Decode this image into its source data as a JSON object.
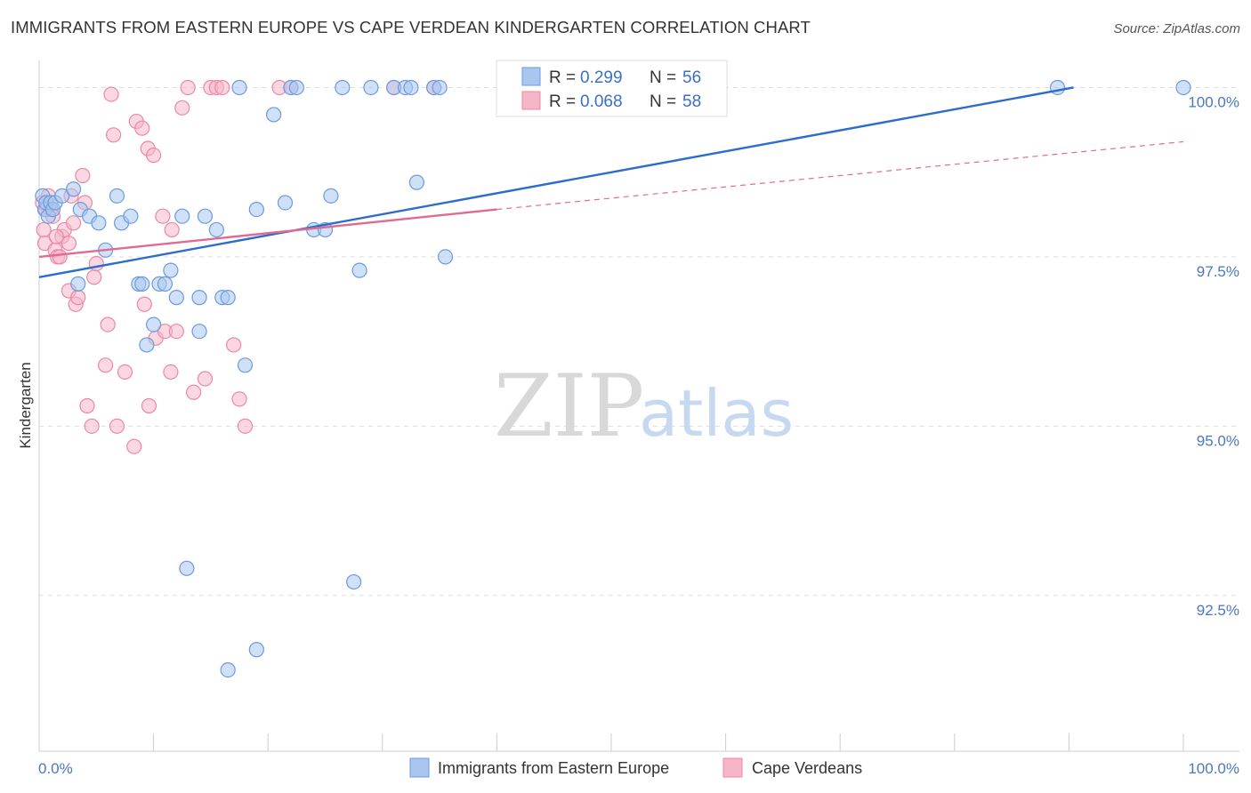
{
  "title": "IMMIGRANTS FROM EASTERN EUROPE VS CAPE VERDEAN KINDERGARTEN CORRELATION CHART",
  "source": "Source: ZipAtlas.com",
  "watermark": {
    "zip": "ZIP",
    "atlas": "atlas"
  },
  "colors": {
    "blue_fill": "#a9c6ee",
    "blue_stroke": "#6a9be0",
    "blue_line": "#2a6dcc",
    "pink_fill": "#f6b6c8",
    "pink_stroke": "#eb88a6",
    "pink_line": "#e06a92",
    "grid": "#dddddd",
    "tick_label": "#4a78c0"
  },
  "legend": {
    "rows": [
      {
        "r_label": "R =",
        "r_value": "0.299",
        "n_label": "N =",
        "n_value": "56"
      },
      {
        "r_label": "R =",
        "r_value": "0.068",
        "n_label": "N =",
        "n_value": "58"
      }
    ]
  },
  "chart_data": {
    "type": "scatter",
    "title": "IMMIGRANTS FROM EASTERN EUROPE VS CAPE VERDEAN KINDERGARTEN CORRELATION CHART",
    "xlabel": "",
    "ylabel": "Kindergarten",
    "xlim": [
      0,
      100
    ],
    "ylim": [
      90.2,
      100.4
    ],
    "x_tick_labels": [
      "0.0%",
      "100.0%"
    ],
    "y_ticks": [
      92.5,
      95.0,
      97.5,
      100.0
    ],
    "y_tick_labels": [
      "92.5%",
      "95.0%",
      "97.5%",
      "100.0%"
    ],
    "series": [
      {
        "name": "Immigrants from Eastern Europe",
        "color": "blue",
        "trend": {
          "x0": 0,
          "y0": 97.2,
          "x1": 90.4,
          "y1": 100.0,
          "dashed_to": null
        },
        "points": [
          [
            0.3,
            98.4
          ],
          [
            0.5,
            98.2
          ],
          [
            0.6,
            98.3
          ],
          [
            0.8,
            98.1
          ],
          [
            1.0,
            98.3
          ],
          [
            1.2,
            98.2
          ],
          [
            1.4,
            98.3
          ],
          [
            2.0,
            98.4
          ],
          [
            3.0,
            98.5
          ],
          [
            3.6,
            98.2
          ],
          [
            4.4,
            98.1
          ],
          [
            5.2,
            98.0
          ],
          [
            6.8,
            98.4
          ],
          [
            7.2,
            98.0
          ],
          [
            8.0,
            98.1
          ],
          [
            5.8,
            97.6
          ],
          [
            3.4,
            97.1
          ],
          [
            8.7,
            97.1
          ],
          [
            9.0,
            97.1
          ],
          [
            10.5,
            97.1
          ],
          [
            11.0,
            97.1
          ],
          [
            11.5,
            97.3
          ],
          [
            12.0,
            96.9
          ],
          [
            12.5,
            98.1
          ],
          [
            14.0,
            96.4
          ],
          [
            14.0,
            96.9
          ],
          [
            14.5,
            98.1
          ],
          [
            15.5,
            97.9
          ],
          [
            16.0,
            96.9
          ],
          [
            16.5,
            96.9
          ],
          [
            9.4,
            96.2
          ],
          [
            10.0,
            96.5
          ],
          [
            18.0,
            95.9
          ],
          [
            17.5,
            100.0
          ],
          [
            19.0,
            98.2
          ],
          [
            20.5,
            99.6
          ],
          [
            21.5,
            98.3
          ],
          [
            22.0,
            100.0
          ],
          [
            22.5,
            100.0
          ],
          [
            24.0,
            97.9
          ],
          [
            25.0,
            97.9
          ],
          [
            25.5,
            98.4
          ],
          [
            26.5,
            100.0
          ],
          [
            28.0,
            97.3
          ],
          [
            29.0,
            100.0
          ],
          [
            31.0,
            100.0
          ],
          [
            32.0,
            100.0
          ],
          [
            32.5,
            100.0
          ],
          [
            33.0,
            98.6
          ],
          [
            34.5,
            100.0
          ],
          [
            35.0,
            100.0
          ],
          [
            35.5,
            97.5
          ],
          [
            89.0,
            100.0
          ],
          [
            100.0,
            100.0
          ],
          [
            12.9,
            92.9
          ],
          [
            27.5,
            92.7
          ],
          [
            19.0,
            91.7
          ],
          [
            16.5,
            91.4
          ]
        ]
      },
      {
        "name": "Cape Verdeans",
        "color": "pink",
        "trend": {
          "x0": 0,
          "y0": 97.5,
          "x1": 40.0,
          "y1": 98.2,
          "dashed_to": [
            100.0,
            99.2
          ]
        },
        "points": [
          [
            0.3,
            98.3
          ],
          [
            0.4,
            97.9
          ],
          [
            0.5,
            97.7
          ],
          [
            0.6,
            98.2
          ],
          [
            0.8,
            98.4
          ],
          [
            1.0,
            98.2
          ],
          [
            1.2,
            98.1
          ],
          [
            1.4,
            97.6
          ],
          [
            1.6,
            97.5
          ],
          [
            1.8,
            97.5
          ],
          [
            2.0,
            97.8
          ],
          [
            2.2,
            97.9
          ],
          [
            2.6,
            97.7
          ],
          [
            2.8,
            98.4
          ],
          [
            3.0,
            98.0
          ],
          [
            4.0,
            98.3
          ],
          [
            2.6,
            97.0
          ],
          [
            3.2,
            96.8
          ],
          [
            3.4,
            96.9
          ],
          [
            4.8,
            97.2
          ],
          [
            5.0,
            97.4
          ],
          [
            6.0,
            96.5
          ],
          [
            5.8,
            95.9
          ],
          [
            6.3,
            99.9
          ],
          [
            6.5,
            99.3
          ],
          [
            8.5,
            99.5
          ],
          [
            9.0,
            99.4
          ],
          [
            9.5,
            99.1
          ],
          [
            10.0,
            99.0
          ],
          [
            10.8,
            98.1
          ],
          [
            11.6,
            97.9
          ],
          [
            7.5,
            95.8
          ],
          [
            3.8,
            98.7
          ],
          [
            4.2,
            95.3
          ],
          [
            4.6,
            95.0
          ],
          [
            6.8,
            95.0
          ],
          [
            8.3,
            94.7
          ],
          [
            9.2,
            96.8
          ],
          [
            9.6,
            95.3
          ],
          [
            10.2,
            96.3
          ],
          [
            11.0,
            96.4
          ],
          [
            11.5,
            95.8
          ],
          [
            12.0,
            96.4
          ],
          [
            12.5,
            99.7
          ],
          [
            13.0,
            100.0
          ],
          [
            13.5,
            95.5
          ],
          [
            14.5,
            95.7
          ],
          [
            15.0,
            100.0
          ],
          [
            15.5,
            100.0
          ],
          [
            16.0,
            100.0
          ],
          [
            17.0,
            96.2
          ],
          [
            17.5,
            95.4
          ],
          [
            18.0,
            95.0
          ],
          [
            21.0,
            100.0
          ],
          [
            22.0,
            100.0
          ],
          [
            31.0,
            100.0
          ],
          [
            34.5,
            100.0
          ],
          [
            1.5,
            97.8
          ]
        ]
      }
    ],
    "legend_labels": [
      "Immigrants from Eastern Europe",
      "Cape Verdeans"
    ]
  }
}
